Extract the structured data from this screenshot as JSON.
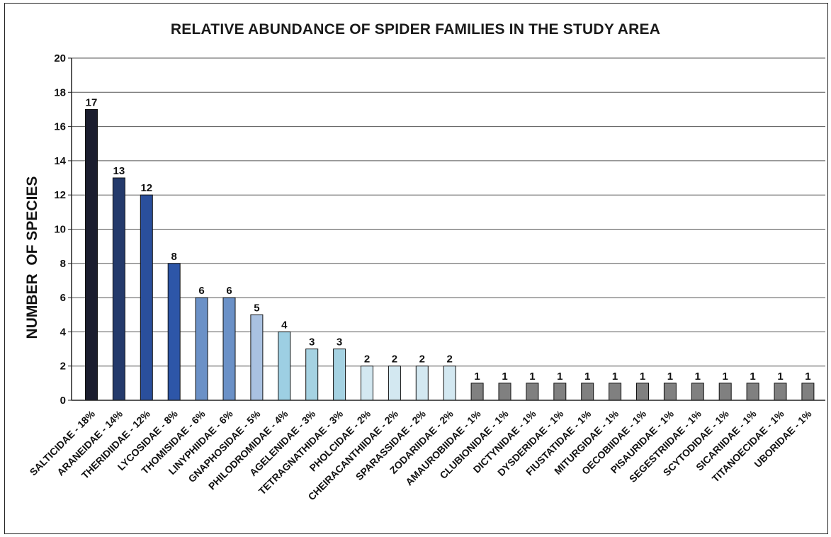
{
  "chart_data": {
    "type": "bar",
    "title": "RELATIVE ABUNDANCE OF SPIDER FAMILIES IN THE STUDY AREA",
    "xlabel": "",
    "ylabel": "NUMBER  OF SPECIES",
    "ylim": [
      0,
      20
    ],
    "yticks": [
      0,
      2,
      4,
      6,
      8,
      10,
      12,
      14,
      16,
      18,
      20
    ],
    "grid": true,
    "legend": "none",
    "categories": [
      "SALTICIDAE - 18%",
      "ARANEIDAE - 14%",
      "THERIDIIDAE - 12%",
      "LYCOSIDAE - 8%",
      "THOMISIDAE - 6%",
      "LINYPHIIDAE - 6%",
      "GNAPHOSIDAE - 5%",
      "PHILODROMIDAE - 4%",
      "AGELENIDAE - 3%",
      "TETRAGNATHIDAE - 3%",
      "PHOLCIDAE - 2%",
      "CHEIRACANTHIIDAE - 2%",
      "SPARASSIDAE - 2%",
      "ZODARIIDAE - 2%",
      "AMAUROBIIDAE - 1%",
      "CLUBIONIDAE - 1%",
      "DICTYNIDAE - 1%",
      "DYSDERIDAE - 1%",
      "FIUSTATIDAE - 1%",
      "MITURGIDAE - 1%",
      "OECOBIIDAE - 1%",
      "PISAURIDAE - 1%",
      "SEGESTRIIDAE - 1%",
      "SCYTODIDAE - 1%",
      "SICARIIDAE - 1%",
      "TITANOECIDAE - 1%",
      "UBORIDAE - 1%"
    ],
    "values": [
      17,
      13,
      12,
      8,
      6,
      6,
      5,
      4,
      3,
      3,
      2,
      2,
      2,
      2,
      1,
      1,
      1,
      1,
      1,
      1,
      1,
      1,
      1,
      1,
      1,
      1,
      1
    ],
    "bar_colors": [
      "#1b1d2e",
      "#243a6b",
      "#2a4f9c",
      "#2d56a8",
      "#6b91c7",
      "#6b91c7",
      "#a9c1e1",
      "#9dcfe3",
      "#a5d2e2",
      "#a5d2e2",
      "#d3e8f1",
      "#d3e8f1",
      "#d3e8f1",
      "#d3e8f1",
      "#808080",
      "#808080",
      "#808080",
      "#808080",
      "#808080",
      "#808080",
      "#808080",
      "#808080",
      "#808080",
      "#808080",
      "#808080",
      "#808080",
      "#808080"
    ]
  }
}
